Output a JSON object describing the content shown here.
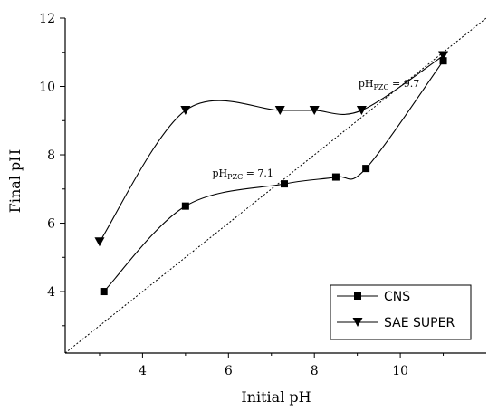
{
  "chart_data": {
    "type": "line",
    "xlabel": "Initial pH",
    "ylabel": "Final pH",
    "xlim": [
      2.2,
      12.0
    ],
    "ylim": [
      2.2,
      12.0
    ],
    "xticks": [
      4,
      6,
      8,
      10
    ],
    "yticks": [
      4,
      6,
      8,
      10,
      12
    ],
    "diagonal_reference": true,
    "grid": false,
    "legend_position": "bottom-right",
    "series": [
      {
        "name": "CNS",
        "marker": "square",
        "x": [
          3.1,
          5.0,
          7.3,
          8.5,
          9.2,
          11.0
        ],
        "y": [
          4.0,
          6.5,
          7.15,
          7.35,
          7.6,
          10.75
        ]
      },
      {
        "name": "SAE SUPER",
        "marker": "triangle-down",
        "x": [
          3.0,
          5.0,
          7.2,
          8.0,
          9.1,
          11.0
        ],
        "y": [
          5.45,
          9.3,
          9.3,
          9.3,
          9.3,
          10.9
        ]
      }
    ],
    "annotations": [
      {
        "prefix": "pH",
        "sub": "PZC",
        "suffix": " = 7.1",
        "x": 7.1,
        "y": 7.1
      },
      {
        "prefix": "pH",
        "sub": "PZC",
        "suffix": " = 9.7",
        "x": 9.7,
        "y": 9.7
      }
    ]
  }
}
